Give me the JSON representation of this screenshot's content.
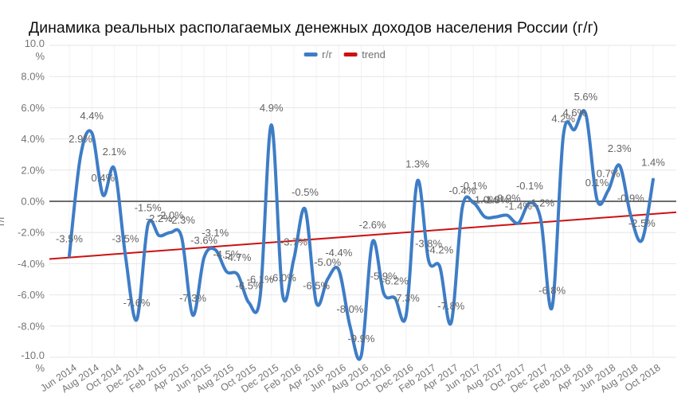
{
  "title": "Динамика реальных располагаемых денежных доходов населения России (г/г)",
  "legend": {
    "series_label": "г/г",
    "trend_label": "trend"
  },
  "y_axis": {
    "title": "г/г",
    "unit": "%",
    "tick_labels": [
      "10.0 %",
      "8.0%",
      "6.0%",
      "4.0%",
      "2.0%",
      "0.0%",
      "-2.0%",
      "-4.0%",
      "-6.0%",
      "-8.0%",
      "-10.0 %"
    ]
  },
  "x_axis": {
    "tick_labels": [
      "Jun 2014",
      "Aug 2014",
      "Oct 2014",
      "Dec 2014",
      "Feb 2015",
      "Apr 2015",
      "Jun 2015",
      "Aug 2015",
      "Oct 2015",
      "Dec 2015",
      "Feb 2016",
      "Apr 2016",
      "Jun 2016",
      "Aug 2016",
      "Oct 2016",
      "Dec 2016",
      "Feb 2017",
      "Apr 2017",
      "Jun 2017",
      "Aug 2017",
      "Oct 2017",
      "Dec 2017",
      "Feb 2018",
      "Apr 2018",
      "Jun 2018",
      "Aug 2018",
      "Oct 2018"
    ]
  },
  "chart_data": {
    "type": "line",
    "title": "Динамика реальных располагаемых денежных доходов населения России (г/г)",
    "ylabel": "г/г",
    "ylim": [
      -10,
      10
    ],
    "y_tick_step": 2,
    "grid": true,
    "legend_position": "top",
    "data_labels": true,
    "x": [
      "Jun 2014",
      "Jul 2014",
      "Aug 2014",
      "Sep 2014",
      "Oct 2014",
      "Nov 2014",
      "Dec 2014",
      "Jan 2015",
      "Feb 2015",
      "Mar 2015",
      "Apr 2015",
      "May 2015",
      "Jun 2015",
      "Jul 2015",
      "Aug 2015",
      "Sep 2015",
      "Oct 2015",
      "Nov 2015",
      "Dec 2015",
      "Jan 2016",
      "Feb 2016",
      "Mar 2016",
      "Apr 2016",
      "May 2016",
      "Jun 2016",
      "Jul 2016",
      "Aug 2016",
      "Sep 2016",
      "Oct 2016",
      "Nov 2016",
      "Dec 2016",
      "Jan 2017",
      "Feb 2017",
      "Mar 2017",
      "Apr 2017",
      "May 2017",
      "Jun 2017",
      "Jul 2017",
      "Aug 2017",
      "Sep 2017",
      "Oct 2017",
      "Nov 2017",
      "Dec 2017",
      "Jan 2018",
      "Feb 2018",
      "Mar 2018",
      "Apr 2018",
      "May 2018",
      "Jun 2018",
      "Jul 2018",
      "Aug 2018",
      "Sep 2018",
      "Oct 2018"
    ],
    "series": [
      {
        "name": "г/г",
        "type": "spline",
        "color": "#3e7dc6",
        "values": [
          -3.5,
          2.9,
          4.4,
          0.4,
          2.1,
          -3.5,
          -7.6,
          -1.5,
          -2.2,
          -2.0,
          -2.3,
          -7.3,
          -3.6,
          -3.1,
          -4.5,
          -4.7,
          -6.5,
          -6.1,
          4.9,
          -6.0,
          -3.7,
          -0.5,
          -6.5,
          -5.0,
          -4.4,
          -8.0,
          -9.9,
          -2.6,
          -5.9,
          -6.2,
          -7.3,
          1.3,
          -3.8,
          -4.2,
          -7.8,
          -0.4,
          -0.1,
          -1.0,
          -1.0,
          -0.9,
          -1.4,
          -0.1,
          -1.2,
          -6.8,
          4.2,
          4.6,
          5.6,
          0.1,
          0.7,
          2.3,
          -0.9,
          -2.5,
          1.4
        ]
      },
      {
        "name": "trend",
        "type": "straight-line",
        "color": "#cc1111",
        "start_value": -3.7,
        "end_value": -0.7
      }
    ]
  },
  "colors": {
    "series_line": "#3e7dc6",
    "trend_line": "#cc1111",
    "gridline": "#e6e6e6",
    "vertical_gridline": "#f2f2f2",
    "zero_line": "#3c3c3c",
    "axis_text": "#757575",
    "data_label_text": "#636363",
    "title_text": "#0f0f0f",
    "background": "#ffffff"
  }
}
